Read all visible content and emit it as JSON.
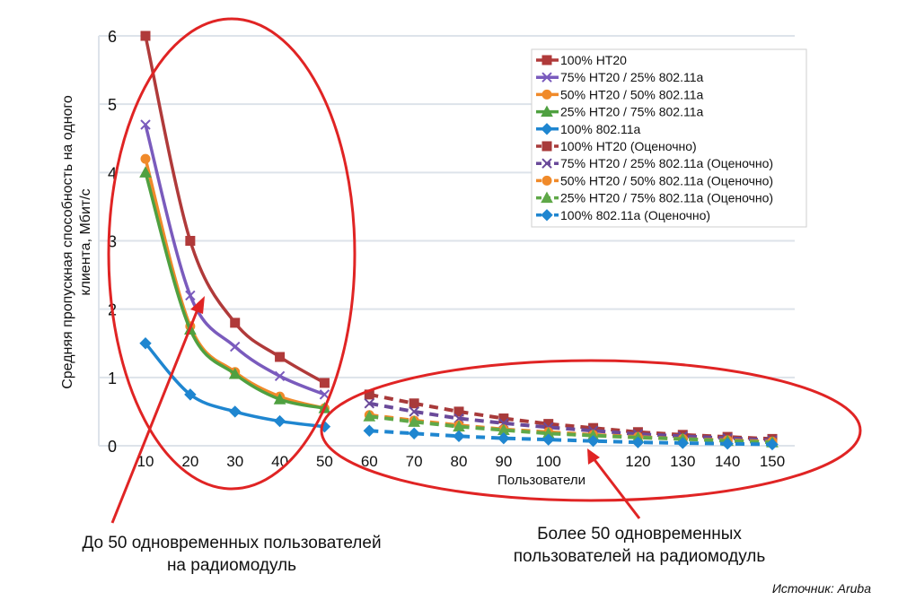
{
  "chart_data": {
    "type": "line",
    "title": "",
    "xlabel": "Пользователи",
    "ylabel": "Средняя пропускная способность на одного клиента, Мбит/с",
    "categories": [
      10,
      20,
      30,
      40,
      50,
      60,
      70,
      80,
      90,
      100,
      110,
      120,
      130,
      140,
      150
    ],
    "x_tick_labels": [
      "10",
      "20",
      "30",
      "40",
      "50",
      "60",
      "70",
      "80",
      "90",
      "100",
      "",
      "120",
      "130",
      "140",
      "150"
    ],
    "ylim": [
      0,
      6
    ],
    "y_ticks": [
      0,
      1,
      2,
      3,
      4,
      5,
      6
    ],
    "grid": true,
    "legend_position": "top-right",
    "series": [
      {
        "name": "100% HT20",
        "color": "#b03a3a",
        "marker": "square",
        "dashed": false,
        "x": [
          10,
          20,
          30,
          40,
          50
        ],
        "values": [
          6.0,
          3.0,
          1.8,
          1.3,
          0.92
        ]
      },
      {
        "name": "75% HT20 / 25% 802.11a",
        "color": "#7a5bbd",
        "marker": "x",
        "dashed": false,
        "x": [
          10,
          20,
          30,
          40,
          50
        ],
        "values": [
          4.7,
          2.2,
          1.45,
          1.02,
          0.75
        ]
      },
      {
        "name": "50% HT20 / 50% 802.11a",
        "color": "#f08a2a",
        "marker": "circle",
        "dashed": false,
        "x": [
          10,
          20,
          30,
          40,
          50
        ],
        "values": [
          4.2,
          1.75,
          1.08,
          0.72,
          0.55
        ]
      },
      {
        "name": "25% HT20 / 75% 802.11a",
        "color": "#4fa040",
        "marker": "triangle",
        "dashed": false,
        "x": [
          10,
          20,
          30,
          40,
          50
        ],
        "values": [
          4.0,
          1.7,
          1.05,
          0.68,
          0.55
        ]
      },
      {
        "name": "100% 802.11a",
        "color": "#1f86d0",
        "marker": "diamond",
        "dashed": false,
        "x": [
          10,
          20,
          30,
          40,
          50
        ],
        "values": [
          1.5,
          0.75,
          0.5,
          0.36,
          0.28
        ]
      },
      {
        "name": "100% HT20 (Оценочно)",
        "color": "#a83a3a",
        "marker": "square",
        "dashed": true,
        "x": [
          60,
          70,
          80,
          90,
          100,
          110,
          120,
          130,
          140,
          150
        ],
        "values": [
          0.75,
          0.62,
          0.5,
          0.4,
          0.32,
          0.26,
          0.2,
          0.16,
          0.13,
          0.1
        ]
      },
      {
        "name": "75% HT20 / 25% 802.11a (Оценочно)",
        "color": "#6a4a9a",
        "marker": "x",
        "dashed": true,
        "x": [
          60,
          70,
          80,
          90,
          100,
          110,
          120,
          130,
          140,
          150
        ],
        "values": [
          0.62,
          0.5,
          0.4,
          0.33,
          0.27,
          0.22,
          0.17,
          0.14,
          0.11,
          0.08
        ]
      },
      {
        "name": "50% HT20 / 50% 802.11a (Оценочно)",
        "color": "#f08a2a",
        "marker": "circle",
        "dashed": true,
        "x": [
          60,
          70,
          80,
          90,
          100,
          110,
          120,
          130,
          140,
          150
        ],
        "values": [
          0.45,
          0.37,
          0.3,
          0.24,
          0.2,
          0.16,
          0.13,
          0.1,
          0.08,
          0.06
        ]
      },
      {
        "name": "25% HT20 / 75% 802.11a (Оценочно)",
        "color": "#5fa848",
        "marker": "triangle",
        "dashed": true,
        "x": [
          60,
          70,
          80,
          90,
          100,
          110,
          120,
          130,
          140,
          150
        ],
        "values": [
          0.43,
          0.35,
          0.28,
          0.23,
          0.18,
          0.15,
          0.12,
          0.1,
          0.07,
          0.05
        ]
      },
      {
        "name": "100% 802.11a (Оценочно)",
        "color": "#1f86d0",
        "marker": "diamond",
        "dashed": true,
        "x": [
          60,
          70,
          80,
          90,
          100,
          110,
          120,
          130,
          140,
          150
        ],
        "values": [
          0.22,
          0.18,
          0.14,
          0.11,
          0.09,
          0.07,
          0.05,
          0.04,
          0.03,
          0.02
        ]
      }
    ],
    "annotations": {
      "left": "До 50 одновременных пользователей на радиомодуль",
      "left_lines": [
        "До 50 одновременных пользователей",
        "на радиомодуль"
      ],
      "right_lines": [
        "Более 50 одновременных",
        "пользователей на радиомодуль"
      ],
      "highlight_color": "#e02424"
    },
    "source": "Источник: Aruba"
  }
}
